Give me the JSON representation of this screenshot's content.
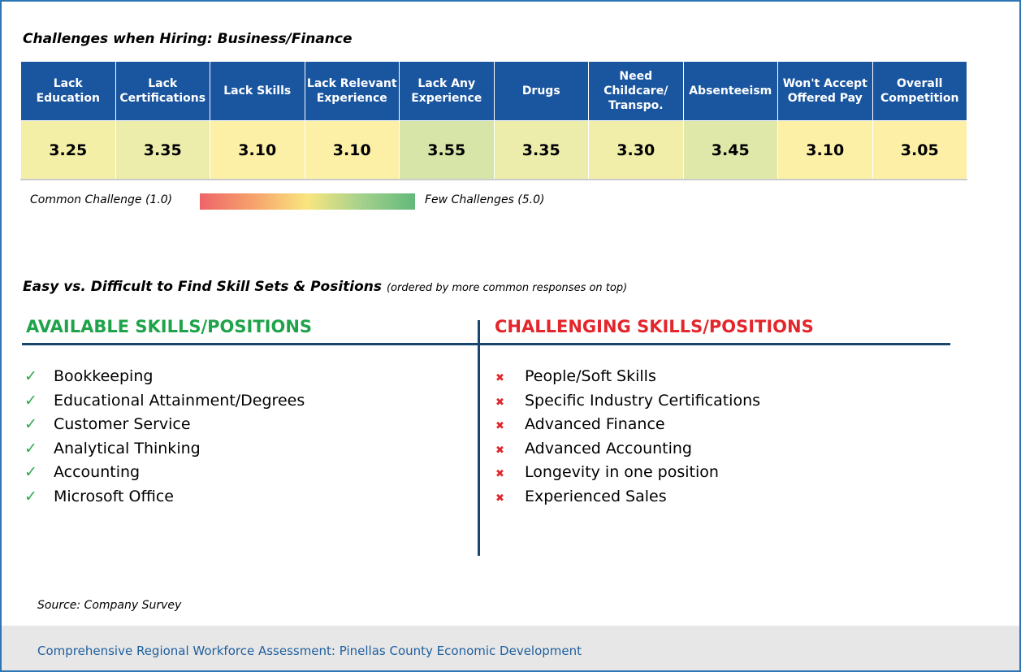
{
  "title": "Challenges when Hiring:  Business/Finance",
  "table": {
    "headers": [
      [
        "Lack",
        "Education"
      ],
      [
        "Lack",
        "Certifications"
      ],
      [
        "Lack Skills"
      ],
      [
        "Lack Relevant",
        "Experience"
      ],
      [
        "Lack Any",
        "Experience"
      ],
      [
        "Drugs"
      ],
      [
        "Need",
        "Childcare/",
        "Transpo."
      ],
      [
        "Absenteeism"
      ],
      [
        "Won't Accept",
        "Offered Pay"
      ],
      [
        "Overall",
        "Competition"
      ]
    ],
    "values": [
      "3.25",
      "3.35",
      "3.10",
      "3.10",
      "3.55",
      "3.35",
      "3.30",
      "3.45",
      "3.10",
      "3.05"
    ],
    "colors": [
      "#f3efa6",
      "#ecedaa",
      "#fcefa6",
      "#fcefa6",
      "#d7e5a8",
      "#ecedaa",
      "#f0eea8",
      "#dfe8a8",
      "#fcefa6",
      "#fdf0a6"
    ]
  },
  "legend": {
    "low": "Common Challenge (1.0)",
    "high": "Few Challenges (5.0)"
  },
  "section": {
    "title": "Easy vs. Difficult to Find Skill Sets & Positions",
    "note": "(ordered by more common responses on top)"
  },
  "available": {
    "heading": "AVAILABLE SKILLS/POSITIONS",
    "items": [
      "Bookkeeping",
      "Educational Attainment/Degrees",
      "Customer Service",
      "Analytical Thinking",
      "Accounting",
      "Microsoft Office"
    ]
  },
  "challenging": {
    "heading": "CHALLENGING SKILLS/POSITIONS",
    "items": [
      "People/Soft Skills",
      "Specific Industry Certifications",
      "Advanced Finance",
      "Advanced Accounting",
      "Longevity in one position",
      "Experienced Sales"
    ]
  },
  "source": "Source: Company Survey",
  "footer": "Comprehensive Regional Workforce Assessment: Pinellas County Economic Development"
}
